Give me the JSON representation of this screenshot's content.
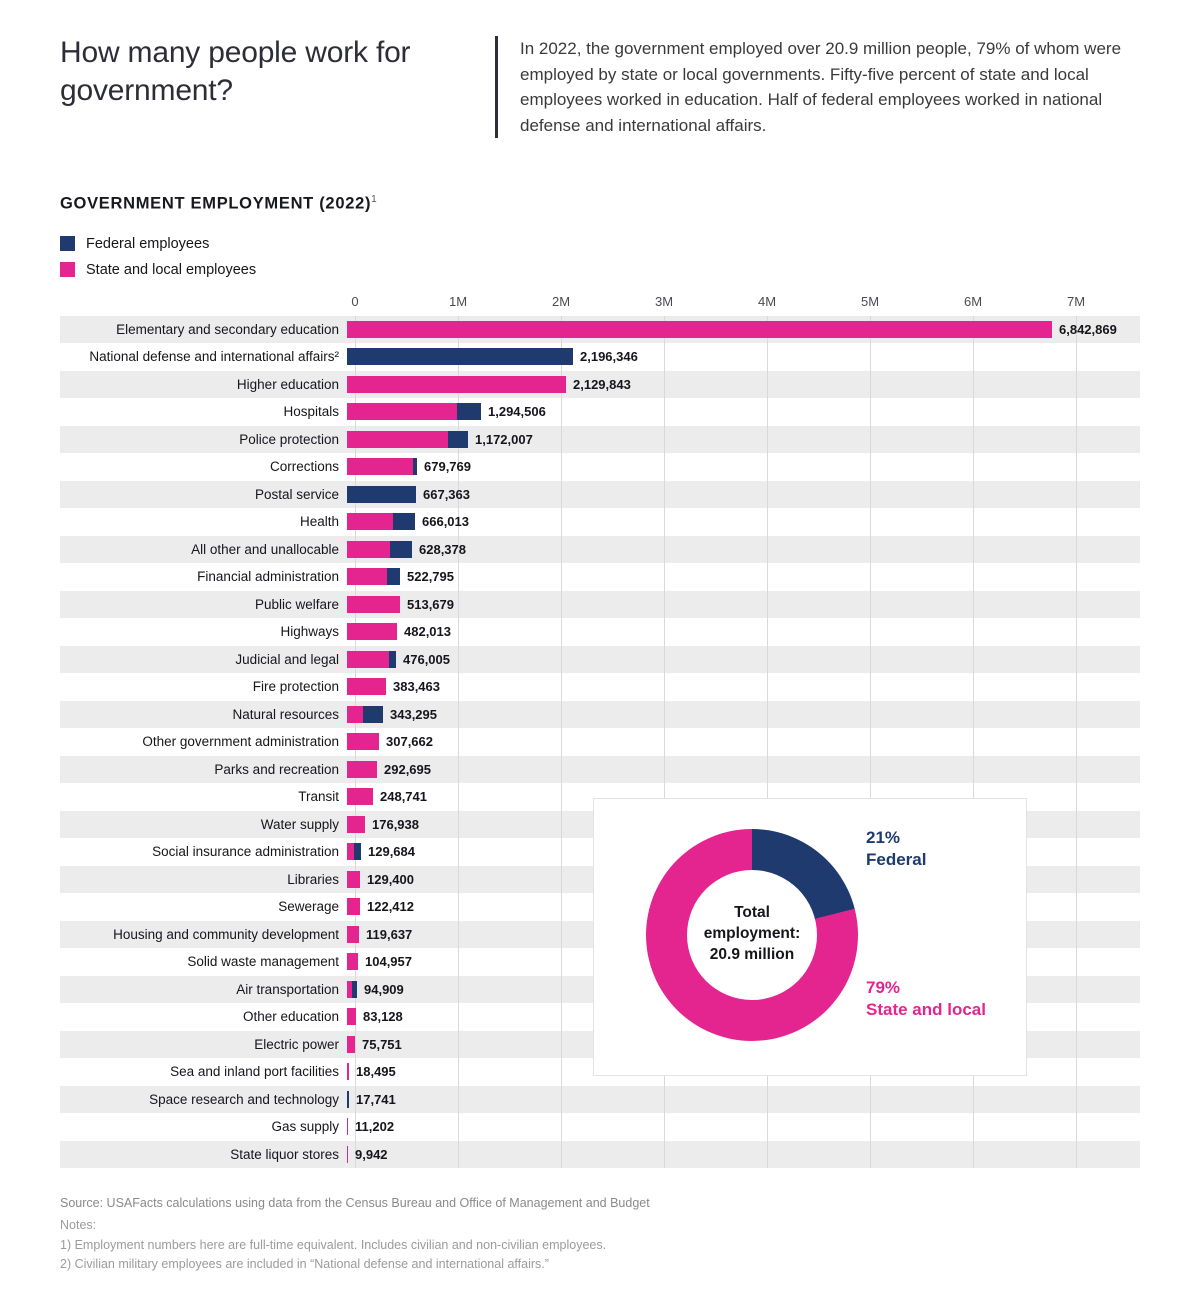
{
  "header": {
    "title": "How many people work for government?",
    "intro": "In 2022, the government employed over 20.9 million people, 79% of whom were employed by state or local governments. Fifty-five percent of state and local employees worked in education. Half of federal employees worked in national defense and international affairs."
  },
  "section": {
    "heading": "GOVERNMENT EMPLOYMENT (2022)",
    "heading_note_marker": "1"
  },
  "legend": {
    "federal": {
      "label": "Federal employees",
      "color": "#1e3a6e"
    },
    "state_local": {
      "label": "State and local employees",
      "color": "#e5258f"
    }
  },
  "chart_data": {
    "type": "bar",
    "orientation": "horizontal",
    "title": "GOVERNMENT EMPLOYMENT (2022)",
    "unit": "employees",
    "axis_max": 7000000,
    "ticks": [
      "0",
      "1M",
      "2M",
      "3M",
      "4M",
      "5M",
      "6M",
      "7M"
    ],
    "series_names": [
      "Federal employees",
      "State and local employees"
    ],
    "colors": {
      "federal": "#1e3a6e",
      "state_local": "#e5258f"
    },
    "rows": [
      {
        "category": "Elementary and secondary education",
        "total": 6842869,
        "label": "6,842,869",
        "federal": 0,
        "state_local": 6842869
      },
      {
        "category": "National defense and international affairs²",
        "total": 2196346,
        "label": "2,196,346",
        "federal": 2196346,
        "state_local": 0
      },
      {
        "category": "Higher education",
        "total": 2129843,
        "label": "2,129,843",
        "federal": 0,
        "state_local": 2129843
      },
      {
        "category": "Hospitals",
        "total": 1294506,
        "label": "1,294,506",
        "federal": 230000,
        "state_local": 1064506
      },
      {
        "category": "Police protection",
        "total": 1172007,
        "label": "1,172,007",
        "federal": 195000,
        "state_local": 977007
      },
      {
        "category": "Corrections",
        "total": 679769,
        "label": "679,769",
        "federal": 40000,
        "state_local": 639769
      },
      {
        "category": "Postal service",
        "total": 667363,
        "label": "667,363",
        "federal": 667363,
        "state_local": 0
      },
      {
        "category": "Health",
        "total": 666013,
        "label": "666,013",
        "federal": 215000,
        "state_local": 451013
      },
      {
        "category": "All other and unallocable",
        "total": 628378,
        "label": "628,378",
        "federal": 210000,
        "state_local": 418378
      },
      {
        "category": "Financial administration",
        "total": 522795,
        "label": "522,795",
        "federal": 130000,
        "state_local": 392795
      },
      {
        "category": "Public welfare",
        "total": 513679,
        "label": "513,679",
        "federal": 0,
        "state_local": 513679
      },
      {
        "category": "Highways",
        "total": 482013,
        "label": "482,013",
        "federal": 0,
        "state_local": 482013
      },
      {
        "category": "Judicial and legal",
        "total": 476005,
        "label": "476,005",
        "federal": 65000,
        "state_local": 411005
      },
      {
        "category": "Fire protection",
        "total": 383463,
        "label": "383,463",
        "federal": 0,
        "state_local": 383463
      },
      {
        "category": "Natural resources",
        "total": 343295,
        "label": "343,295",
        "federal": 190000,
        "state_local": 153295
      },
      {
        "category": "Other government administration",
        "total": 307662,
        "label": "307,662",
        "federal": 0,
        "state_local": 307662
      },
      {
        "category": "Parks and recreation",
        "total": 292695,
        "label": "292,695",
        "federal": 0,
        "state_local": 292695
      },
      {
        "category": "Transit",
        "total": 248741,
        "label": "248,741",
        "federal": 0,
        "state_local": 248741
      },
      {
        "category": "Water supply",
        "total": 176938,
        "label": "176,938",
        "federal": 0,
        "state_local": 176938
      },
      {
        "category": "Social insurance administration",
        "total": 129684,
        "label": "129,684",
        "federal": 65000,
        "state_local": 64684
      },
      {
        "category": "Libraries",
        "total": 129400,
        "label": "129,400",
        "federal": 0,
        "state_local": 129400
      },
      {
        "category": "Sewerage",
        "total": 122412,
        "label": "122,412",
        "federal": 0,
        "state_local": 122412
      },
      {
        "category": "Housing and community development",
        "total": 119637,
        "label": "119,637",
        "federal": 0,
        "state_local": 119637
      },
      {
        "category": "Solid waste management",
        "total": 104957,
        "label": "104,957",
        "federal": 0,
        "state_local": 104957
      },
      {
        "category": "Air transportation",
        "total": 94909,
        "label": "94,909",
        "federal": 45000,
        "state_local": 49909
      },
      {
        "category": "Other education",
        "total": 83128,
        "label": "83,128",
        "federal": 0,
        "state_local": 83128
      },
      {
        "category": "Electric power",
        "total": 75751,
        "label": "75,751",
        "federal": 0,
        "state_local": 75751
      },
      {
        "category": "Sea and inland port facilities",
        "total": 18495,
        "label": "18,495",
        "federal": 0,
        "state_local": 18495
      },
      {
        "category": "Space research and technology",
        "total": 17741,
        "label": "17,741",
        "federal": 17741,
        "state_local": 0
      },
      {
        "category": "Gas supply",
        "total": 11202,
        "label": "11,202",
        "federal": 0,
        "state_local": 11202
      },
      {
        "category": "State liquor stores",
        "total": 9942,
        "label": "9,942",
        "federal": 0,
        "state_local": 9942
      }
    ],
    "donut": {
      "type": "pie",
      "slices": [
        {
          "name": "Federal",
          "pct": 21
        },
        {
          "name": "State and local",
          "pct": 79
        }
      ]
    }
  },
  "donut": {
    "center": {
      "line1": "Total",
      "line2": "employment:",
      "line3": "20.9 million"
    },
    "federal": {
      "pct": "21%",
      "name": "Federal",
      "value": 21
    },
    "state_local": {
      "pct": "79%",
      "name": "State and local",
      "value": 79
    }
  },
  "footer": {
    "source": "Source: USAFacts calculations using data from the Census Bureau and Office of Management and Budget",
    "notes_label": "Notes:",
    "notes": [
      "1) Employment numbers here are full-time equivalent. Includes civilian and non-civilian employees.",
      "2) Civilian military employees are included in “National defense and international affairs.”"
    ]
  }
}
